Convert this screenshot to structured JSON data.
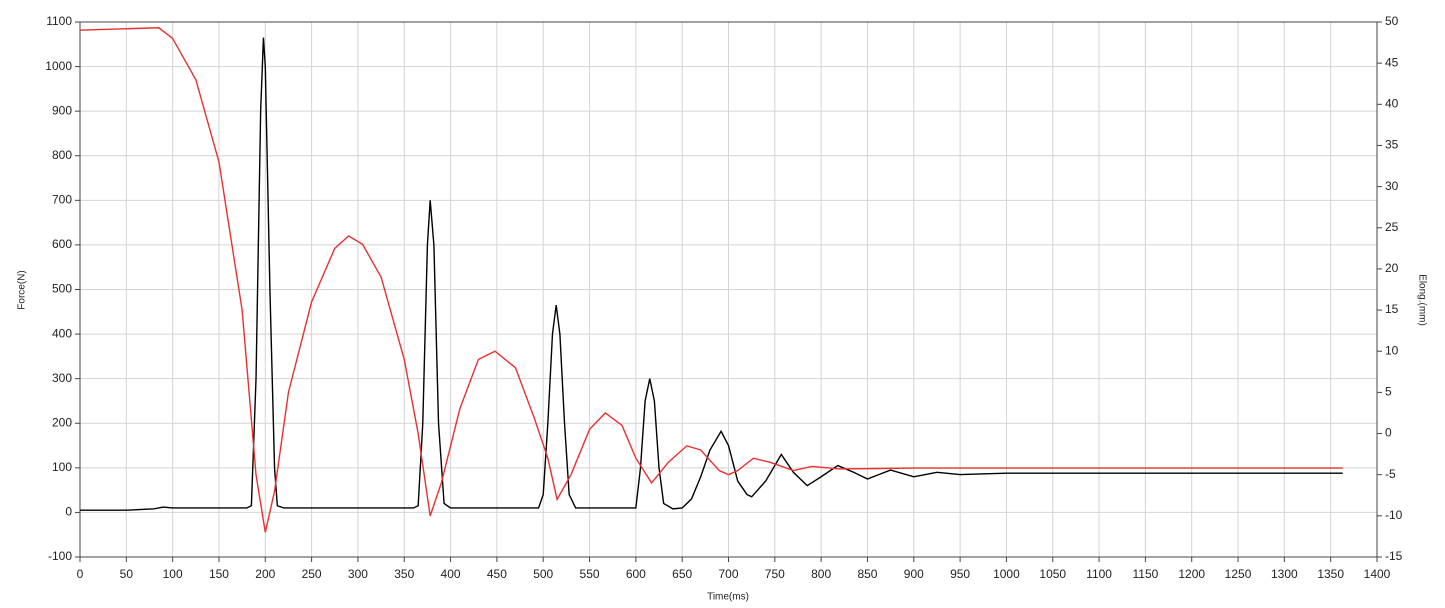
{
  "chart_data": {
    "type": "line",
    "x_label": "Time(ms)",
    "y_label": "Force(N)",
    "y2_label": "Elong.(mm)",
    "xlim": [
      0,
      1400
    ],
    "xticks": [
      0,
      50,
      100,
      150,
      200,
      250,
      300,
      350,
      400,
      450,
      500,
      550,
      600,
      650,
      700,
      750,
      800,
      850,
      900,
      950,
      1000,
      1050,
      1100,
      1150,
      1200,
      1250,
      1300,
      1350,
      1400
    ],
    "ylim": [
      -100,
      1100
    ],
    "yticks": [
      -100,
      0,
      100,
      200,
      300,
      400,
      500,
      600,
      700,
      800,
      900,
      1000,
      1100
    ],
    "y2lim": [
      -15,
      50
    ],
    "y2ticks": [
      -15,
      -10,
      -5,
      0,
      5,
      10,
      15,
      20,
      25,
      30,
      35,
      40,
      45,
      50
    ],
    "grid": true,
    "series": [
      {
        "name": "Force",
        "color": "#000000",
        "axis": "y",
        "x": [
          0,
          50,
          80,
          90,
          100,
          180,
          185,
          190,
          195,
          198,
          200,
          205,
          210,
          213,
          220,
          300,
          360,
          365,
          370,
          375,
          378,
          382,
          387,
          393,
          400,
          495,
          500,
          505,
          510,
          514,
          518,
          523,
          528,
          535,
          600,
          605,
          610,
          615,
          620,
          625,
          630,
          640,
          650,
          660,
          670,
          680,
          692,
          700,
          710,
          720,
          725,
          740,
          757,
          770,
          785,
          800,
          818,
          835,
          850,
          875,
          900,
          925,
          950,
          1000,
          1100,
          1200,
          1300,
          1363
        ],
        "values": [
          5,
          5,
          8,
          12,
          10,
          10,
          15,
          300,
          900,
          1065,
          1000,
          500,
          100,
          15,
          10,
          10,
          10,
          15,
          200,
          600,
          700,
          600,
          200,
          20,
          10,
          10,
          40,
          200,
          400,
          465,
          400,
          200,
          40,
          10,
          10,
          100,
          250,
          300,
          250,
          100,
          20,
          8,
          10,
          30,
          80,
          140,
          182,
          150,
          70,
          40,
          35,
          70,
          130,
          90,
          60,
          80,
          105,
          90,
          75,
          95,
          80,
          90,
          85,
          88,
          88,
          88,
          88,
          88
        ]
      },
      {
        "name": "Elong",
        "color": "#e8312f",
        "axis": "y2",
        "x": [
          0,
          85,
          100,
          125,
          150,
          175,
          190,
          200,
          210,
          225,
          250,
          275,
          290,
          305,
          325,
          350,
          365,
          378,
          390,
          410,
          430,
          448,
          470,
          490,
          505,
          515,
          530,
          550,
          567,
          585,
          600,
          617,
          635,
          655,
          670,
          690,
          700,
          710,
          727,
          745,
          770,
          790,
          820,
          900,
          1000,
          1200,
          1363
        ],
        "values": [
          49,
          49.3,
          48,
          43,
          33,
          15,
          -5,
          -12,
          -7,
          5,
          16,
          22.5,
          24,
          23,
          19,
          9,
          0,
          -10,
          -6,
          3,
          9,
          10,
          8,
          2,
          -3,
          -8,
          -5,
          0.5,
          2.5,
          1,
          -3,
          -6,
          -3.5,
          -1.5,
          -2,
          -4.5,
          -5,
          -4.5,
          -3,
          -3.5,
          -4.5,
          -4,
          -4.3,
          -4.2,
          -4.2,
          -4.2,
          -4.2
        ]
      }
    ]
  }
}
